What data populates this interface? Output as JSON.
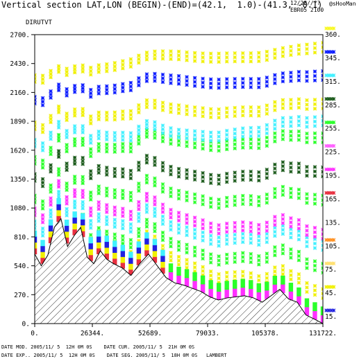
{
  "header": {
    "title": "Vertical section LAT,LON (BEGIN)-(END)=(42.1,  1.0)-(41.3, -0.1)",
    "date_line": "12/28//??",
    "signature": "@sHooMan",
    "model_line": "EBR05 2100"
  },
  "chart_data": {
    "type": "scatter",
    "title": "DIRUTVT",
    "x_ticks": [
      "0.",
      "26344.",
      "52689.",
      "79033.",
      "105378.",
      "131722."
    ],
    "y_ticks": [
      "0.",
      "270.",
      "540.",
      "810.",
      "1080.",
      "1350.",
      "1620.",
      "1890.",
      "2160.",
      "2430.",
      "2700."
    ],
    "xlim": [
      0,
      131722
    ],
    "ylim": [
      0,
      2700
    ],
    "colorbar": {
      "levels": [
        "15.",
        "45.",
        "75.",
        "105.",
        "135.",
        "165.",
        "195.",
        "225.",
        "255.",
        "285.",
        "315.",
        "345.",
        "360."
      ],
      "colors": [
        "#2020e0",
        "#f0f000",
        "#ffe070",
        "#ff9020",
        "#ffffff",
        "#e83040",
        "#ff30ff",
        "#ff60ff",
        "#2aff2a",
        "#1a5a1a",
        "#40f0ff",
        "#0a1aff",
        "#f8f820"
      ]
    },
    "terrain": {
      "x": [
        0,
        3000,
        6000,
        9000,
        12000,
        15000,
        18000,
        21000,
        24000,
        27000,
        30000,
        33000,
        36000,
        40000,
        44000,
        48000,
        52000,
        56000,
        60000,
        64000,
        68000,
        72000,
        76000,
        80000,
        84000,
        88000,
        92000,
        96000,
        100000,
        104000,
        108000,
        112000,
        116000,
        120000,
        124000,
        128000,
        131722
      ],
      "y": [
        650,
        540,
        640,
        900,
        980,
        720,
        820,
        900,
        620,
        560,
        680,
        600,
        560,
        520,
        450,
        560,
        650,
        540,
        430,
        380,
        360,
        330,
        300,
        250,
        220,
        240,
        250,
        260,
        240,
        200,
        260,
        320,
        230,
        200,
        80,
        40,
        0
      ]
    },
    "bands": [
      {
        "h": [
          3,
          6,
          9
        ],
        "color": "#f0f000"
      },
      {
        "h": [
          6,
          12,
          18
        ],
        "color": "#2aff2a"
      },
      {
        "h": [
          12,
          19,
          26
        ],
        "color": "#40f0ff"
      },
      {
        "h": [
          18,
          24,
          30
        ],
        "color": "#ff30ff"
      },
      {
        "h": [
          24,
          33,
          42
        ],
        "color": "#2aff2a"
      },
      {
        "h": [
          34,
          42,
          52
        ],
        "color": "#1a5a1a"
      },
      {
        "h": [
          42,
          55,
          64
        ],
        "color": "#2aff2a"
      },
      {
        "h": [
          50,
          58,
          70
        ],
        "color": "#40f0ff"
      },
      {
        "h": [
          58,
          68,
          76
        ],
        "color": "#f0f000"
      },
      {
        "h": [
          70,
          80,
          86
        ],
        "color": "#0a1aff"
      },
      {
        "h": [
          80,
          90,
          96
        ],
        "color": "#f0f000"
      }
    ],
    "lowlevel": {
      "x": [
        0,
        131722
      ],
      "columns": 36,
      "colors_left": [
        "#e83040",
        "#f0f000",
        "#2020e0",
        "#40f0ff"
      ],
      "colors_right": [
        "#ff30ff",
        "#2aff2a"
      ]
    }
  },
  "footer": {
    "line1": "DATE MOD. 2005/11/ 5  12H 0M 0S    DATE CUR. 2005/11/ 5  21H 0M 0S",
    "line2": "DATE EXP.. 2005/11/ 5  12H 0M 0S    DATE SEG. 2005/11/ 5  18H 0M 0S   LAMBERT"
  }
}
